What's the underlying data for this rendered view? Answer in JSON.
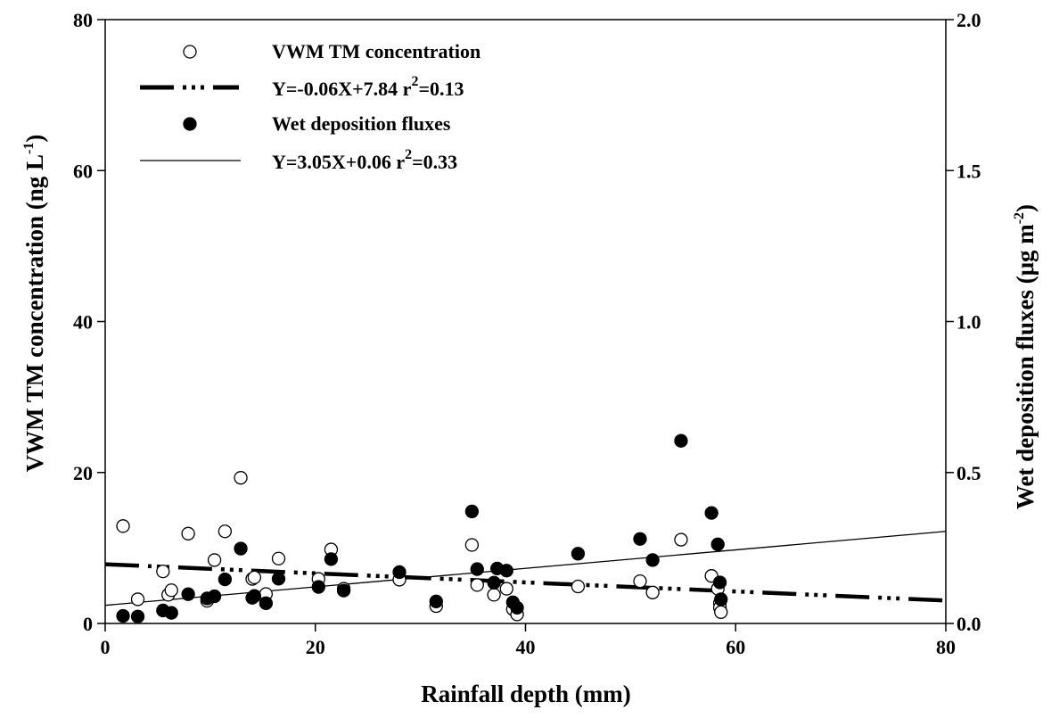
{
  "chart_data": {
    "type": "scatter",
    "x_axis": {
      "label": "Rainfall depth (mm)",
      "range": [
        0,
        80
      ],
      "ticks": [
        0,
        20,
        40,
        60,
        80
      ],
      "tick_labels": [
        "0",
        "20",
        "40",
        "60",
        "80"
      ]
    },
    "y_left_axis": {
      "label": "VWM TM concentration (ng L",
      "label_sup": "-1",
      "label_end": ")",
      "range": [
        0,
        80
      ],
      "ticks": [
        0,
        20,
        40,
        60,
        80
      ],
      "tick_labels": [
        "0",
        "20",
        "40",
        "60",
        "80"
      ]
    },
    "y_right_axis": {
      "label": "Wet deposition fluxes (μg m",
      "label_sup": "-2",
      "label_end": ")",
      "range": [
        0,
        2.0
      ],
      "ticks": [
        0,
        0.5,
        1.0,
        1.5,
        2.0
      ],
      "tick_labels": [
        "0.0",
        "0.5",
        "1.0",
        "1.5",
        "2.0"
      ]
    },
    "grid": false,
    "legend_position": "top-left",
    "legend": {
      "open_marker": "VWM TM concentration",
      "dashed_fit_main": "Y=-0.06X+7.84  r",
      "dashed_fit_sup": "2",
      "dashed_fit_end": "=0.13",
      "filled_marker": "Wet deposition fluxes",
      "solid_fit_main": "Y=3.05X+0.06  r",
      "solid_fit_sup": "2",
      "solid_fit_end": "=0.33"
    },
    "series": [
      {
        "name": "VWM TM concentration",
        "axis": "left",
        "marker": "open-circle",
        "x": [
          1.7,
          3.1,
          5.5,
          6.0,
          6.3,
          7.9,
          9.7,
          10.4,
          11.4,
          12.9,
          14.0,
          14.2,
          15.3,
          16.5,
          20.3,
          21.5,
          22.7,
          28.0,
          31.5,
          34.9,
          35.4,
          37.0,
          38.2,
          38.8,
          39.2,
          45.0,
          50.9,
          52.1,
          54.8,
          57.7,
          58.3,
          58.5,
          58.5,
          58.6
        ],
        "y": [
          12.9,
          3.2,
          6.9,
          3.8,
          4.4,
          11.9,
          3.0,
          8.4,
          12.2,
          19.3,
          5.9,
          6.1,
          3.9,
          8.6,
          5.9,
          9.8,
          4.6,
          5.8,
          2.3,
          10.4,
          5.1,
          3.8,
          4.6,
          1.9,
          1.2,
          4.9,
          5.6,
          4.1,
          11.1,
          6.3,
          4.6,
          2.7,
          2.1,
          1.5
        ]
      },
      {
        "name": "Wet deposition fluxes",
        "axis": "right",
        "marker": "filled-circle",
        "x": [
          1.7,
          3.1,
          5.5,
          6.3,
          7.9,
          9.7,
          10.4,
          11.4,
          12.9,
          14.0,
          14.2,
          15.3,
          16.5,
          20.3,
          21.5,
          22.7,
          28.0,
          31.5,
          34.9,
          35.4,
          37.0,
          37.3,
          38.2,
          38.8,
          39.2,
          45.0,
          50.9,
          52.1,
          54.8,
          57.7,
          58.3,
          58.5,
          58.6
        ],
        "y": [
          0.025,
          0.023,
          0.043,
          0.035,
          0.097,
          0.083,
          0.09,
          0.146,
          0.248,
          0.085,
          0.091,
          0.067,
          0.148,
          0.121,
          0.213,
          0.109,
          0.17,
          0.073,
          0.371,
          0.18,
          0.135,
          0.182,
          0.175,
          0.07,
          0.052,
          0.231,
          0.28,
          0.21,
          0.605,
          0.366,
          0.262,
          0.136,
          0.08
        ]
      }
    ],
    "fit_lines": [
      {
        "name": "Y=-0.06X+7.84",
        "axis": "left",
        "style": "dashed",
        "x": [
          0,
          80
        ],
        "y": [
          7.84,
          3.04
        ]
      },
      {
        "name": "Y=3.05X+0.06",
        "axis": "right",
        "style": "solid",
        "x": [
          0,
          80
        ],
        "y": [
          0.06,
          0.305
        ]
      }
    ]
  }
}
